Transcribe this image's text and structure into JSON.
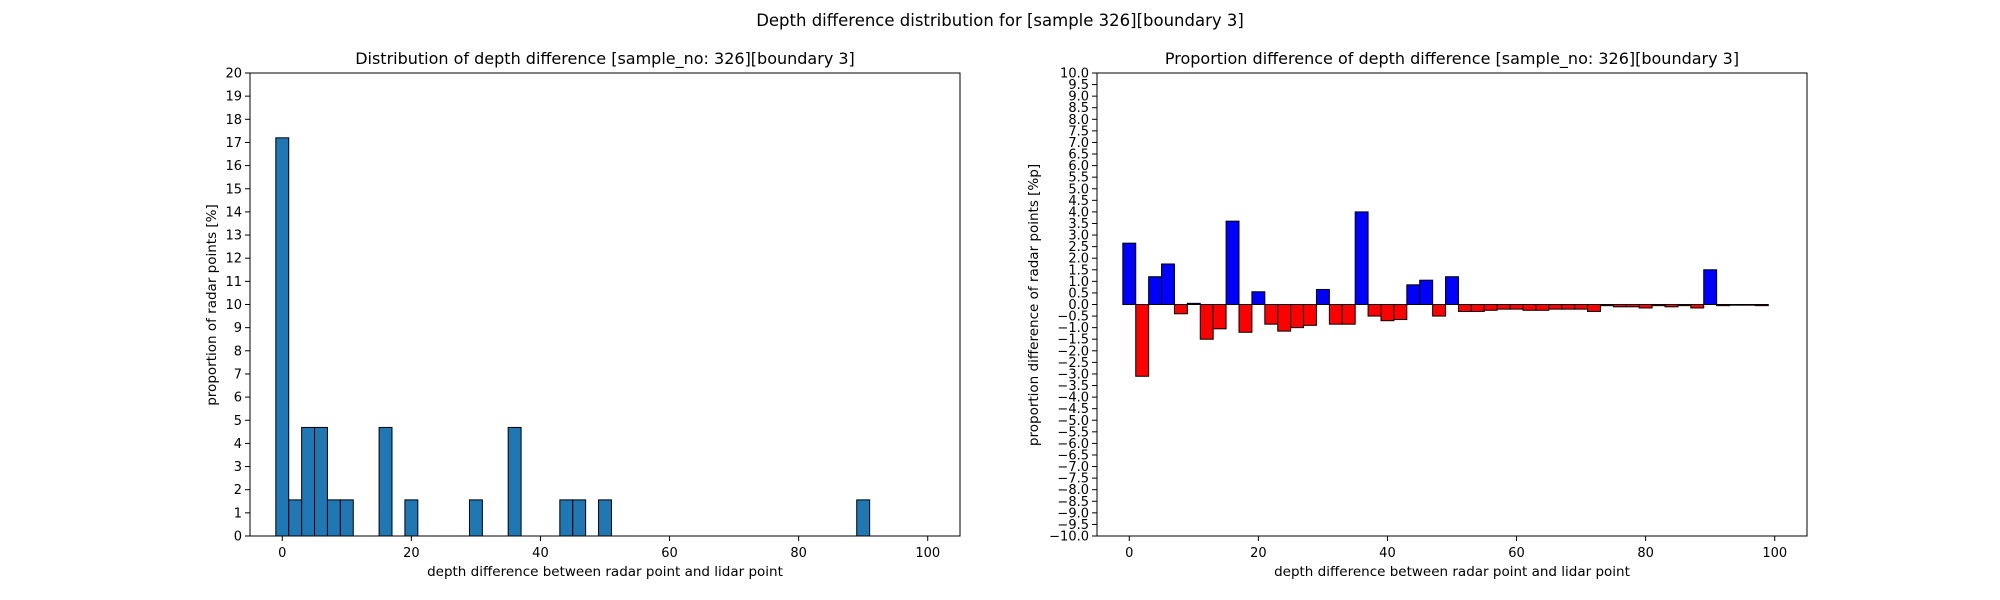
{
  "figure": {
    "suptitle": "Depth difference distribution for [sample 326][boundary 3]"
  },
  "chart_data": [
    {
      "type": "bar",
      "title": "Distribution of depth difference [sample_no: 326][boundary 3]",
      "xlabel": "depth difference between radar point and lidar point",
      "ylabel": "proportion of radar points [%]",
      "xlim": [
        -5,
        105
      ],
      "ylim": [
        0,
        20
      ],
      "xticks": [
        0,
        20,
        40,
        60,
        80,
        100
      ],
      "yticks": [
        0,
        1,
        2,
        3,
        4,
        5,
        6,
        7,
        8,
        9,
        10,
        11,
        12,
        13,
        14,
        15,
        16,
        17,
        18,
        19,
        20
      ],
      "bin_width": 2,
      "bar_color": "#1f77b4",
      "edge_color": "#000000",
      "grid": false,
      "x": [
        0,
        2,
        4,
        6,
        8,
        10,
        12,
        14,
        16,
        18,
        20,
        22,
        24,
        26,
        28,
        30,
        32,
        34,
        36,
        38,
        40,
        42,
        44,
        46,
        48,
        50,
        52,
        54,
        56,
        58,
        60,
        62,
        64,
        66,
        68,
        70,
        72,
        74,
        76,
        78,
        80,
        82,
        84,
        86,
        88,
        90,
        92,
        94,
        96,
        98
      ],
      "values": [
        17.2,
        1.56,
        4.69,
        4.69,
        1.56,
        1.56,
        0,
        0,
        4.69,
        0,
        1.56,
        0,
        0,
        0,
        0,
        1.56,
        0,
        0,
        4.69,
        0,
        0,
        0,
        1.56,
        1.56,
        0,
        1.56,
        0,
        0,
        0,
        0,
        0,
        0,
        0,
        0,
        0,
        0,
        0,
        0,
        0,
        0,
        0,
        0,
        0,
        0,
        0,
        1.56,
        0,
        0,
        0,
        0
      ]
    },
    {
      "type": "bar",
      "title": "Proportion difference of depth difference [sample_no: 326][boundary 3]",
      "xlabel": "depth difference between radar point and lidar point",
      "ylabel": "proportion difference of radar points [%p]",
      "xlim": [
        -5,
        105
      ],
      "ylim": [
        -10,
        10
      ],
      "xticks": [
        0,
        20,
        40,
        60,
        80,
        100
      ],
      "ytick_step": 0.5,
      "bin_width": 2,
      "positive_color": "#0000ff",
      "negative_color": "#ff0000",
      "edge_color": "#000000",
      "grid": false,
      "x": [
        0,
        2,
        4,
        6,
        8,
        10,
        12,
        14,
        16,
        18,
        20,
        22,
        24,
        26,
        28,
        30,
        32,
        34,
        36,
        38,
        40,
        42,
        44,
        46,
        48,
        50,
        52,
        54,
        56,
        58,
        60,
        62,
        64,
        66,
        68,
        70,
        72,
        74,
        76,
        78,
        80,
        82,
        84,
        86,
        88,
        90,
        92,
        94,
        96,
        98
      ],
      "values": [
        2.65,
        -3.1,
        1.2,
        1.75,
        -0.4,
        0.05,
        -1.5,
        -1.05,
        3.6,
        -1.2,
        0.55,
        -0.85,
        -1.15,
        -1.0,
        -0.9,
        0.65,
        -0.85,
        -0.85,
        4.0,
        -0.5,
        -0.7,
        -0.65,
        0.85,
        1.05,
        -0.5,
        1.2,
        -0.3,
        -0.3,
        -0.25,
        -0.2,
        -0.2,
        -0.25,
        -0.25,
        -0.2,
        -0.2,
        -0.2,
        -0.3,
        -0.05,
        -0.1,
        -0.1,
        -0.15,
        -0.05,
        -0.1,
        -0.05,
        -0.15,
        1.5,
        -0.05,
        -0.03,
        -0.03,
        -0.05
      ]
    }
  ]
}
